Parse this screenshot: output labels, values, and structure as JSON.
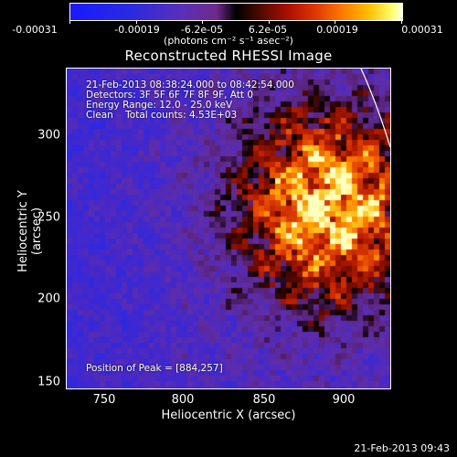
{
  "colorbar": {
    "tick_labels": [
      "-0.00031",
      "-0.00019",
      "-6.2e-05",
      "6.2e-05",
      "0.00019",
      "0.00031"
    ],
    "units": "(photons cm⁻² s⁻¹ asec⁻²)"
  },
  "plot": {
    "title": "Reconstructed RHESSI Image",
    "info_lines": [
      "21-Feb-2013 08:38:24.000 to 08:42:54.000",
      "Detectors: 3F 5F 6F 7F 8F 9F, Att 0",
      "Energy Range: 12.0 - 25.0 keV",
      "Clean    Total counts: 4.53E+03"
    ],
    "peak_label": "Position of Peak = [884,257]",
    "x_label": "Heliocentric X (arcsec)",
    "y_label": "Heliocentric Y (arcsec)",
    "x_ticks": [
      "750",
      "800",
      "850",
      "900"
    ],
    "y_ticks": [
      "300",
      "250",
      "200",
      "150"
    ]
  },
  "timestamp": "21-Feb-2013 09:43"
}
